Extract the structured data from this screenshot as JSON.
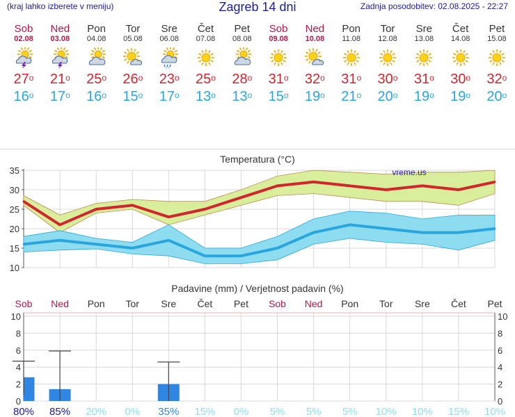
{
  "header": {
    "left_note": "(kraj lahko izberete v meniju)",
    "title": "Zagreb 14 dni",
    "updated": "Zadnja posodobitev: 02.08.2025 - 22:27"
  },
  "days": [
    {
      "name": "Sob",
      "date": "02.08",
      "weekend": true,
      "icon": "sun-cloud-thunder-icon",
      "max": 27,
      "min": 16,
      "rain_mm": 2.8,
      "rain_err": [
        0.7,
        4.7
      ],
      "prob": "80%"
    },
    {
      "name": "Ned",
      "date": "03.08",
      "weekend": true,
      "icon": "sun-cloud-thunder-icon",
      "max": 21,
      "min": 17,
      "rain_mm": 1.4,
      "rain_err": [
        0,
        5.9
      ],
      "prob": "85%"
    },
    {
      "name": "Pon",
      "date": "04.08",
      "weekend": false,
      "icon": "sun-cloud-icon",
      "max": 25,
      "min": 16,
      "rain_mm": 0,
      "prob": "20%"
    },
    {
      "name": "Tor",
      "date": "05.08",
      "weekend": false,
      "icon": "sun-small-cloud-icon",
      "max": 26,
      "min": 15,
      "rain_mm": 0,
      "prob": "0%"
    },
    {
      "name": "Sre",
      "date": "06.08",
      "weekend": false,
      "icon": "sun-cloud-rain-icon",
      "max": 23,
      "min": 17,
      "rain_mm": 2.0,
      "rain_err": [
        0,
        4.6
      ],
      "prob": "35%"
    },
    {
      "name": "Čet",
      "date": "07.08",
      "weekend": false,
      "icon": "sun-icon",
      "max": 25,
      "min": 13,
      "rain_mm": 0,
      "prob": "15%"
    },
    {
      "name": "Pet",
      "date": "08.08",
      "weekend": false,
      "icon": "sun-cloud-icon",
      "max": 28,
      "min": 13,
      "rain_mm": 0,
      "prob": "0%"
    },
    {
      "name": "Sob",
      "date": "09.08",
      "weekend": true,
      "icon": "sun-icon",
      "max": 31,
      "min": 15,
      "rain_mm": 0,
      "prob": "5%"
    },
    {
      "name": "Ned",
      "date": "10.08",
      "weekend": true,
      "icon": "sun-small-cloud-icon",
      "max": 32,
      "min": 19,
      "rain_mm": 0,
      "prob": "5%"
    },
    {
      "name": "Pon",
      "date": "11.08",
      "weekend": false,
      "icon": "sun-icon",
      "max": 31,
      "min": 21,
      "rain_mm": 0,
      "prob": "5%"
    },
    {
      "name": "Tor",
      "date": "12.08",
      "weekend": false,
      "icon": "sun-icon",
      "max": 30,
      "min": 20,
      "rain_mm": 0,
      "prob": "10%"
    },
    {
      "name": "Sre",
      "date": "13.08",
      "weekend": false,
      "icon": "sun-icon",
      "max": 31,
      "min": 19,
      "rain_mm": 0,
      "prob": "10%"
    },
    {
      "name": "Čet",
      "date": "14.08",
      "weekend": false,
      "icon": "sun-icon",
      "max": 30,
      "min": 19,
      "rain_mm": 0,
      "prob": "15%"
    },
    {
      "name": "Pet",
      "date": "15.08",
      "weekend": false,
      "icon": "sun-icon",
      "max": 32,
      "min": 20,
      "rain_mm": 0,
      "prob": "10%"
    }
  ],
  "colors": {
    "max": "#d0262e",
    "min": "#2aa6de",
    "max_band": "#d9ee9a",
    "min_band": "#8ddcef",
    "bar": "#2f86e3",
    "weekend": "#b0174e",
    "grid": "#d8d8d8",
    "prob_high": "#1a1aa6",
    "prob_low": "#8ddcef"
  },
  "chart_data": [
    {
      "type": "line",
      "title": "Temperatura (°C)",
      "watermark": "vreme.us",
      "categories": [
        "02.08",
        "03.08",
        "04.08",
        "05.08",
        "06.08",
        "07.08",
        "08.08",
        "09.08",
        "10.08",
        "11.08",
        "12.08",
        "13.08",
        "14.08",
        "15.08"
      ],
      "ylim": [
        10,
        35
      ],
      "yticks": [
        10,
        15,
        20,
        25,
        30,
        35
      ],
      "grid": true,
      "series": [
        {
          "name": "max",
          "values": [
            27,
            21,
            25,
            26,
            23,
            25,
            28,
            31,
            32,
            31,
            30,
            31,
            30,
            32
          ],
          "band_low": [
            26,
            19,
            24,
            25,
            21,
            23.5,
            26,
            28.5,
            29,
            28,
            27,
            27,
            26,
            29
          ],
          "band_high": [
            28.5,
            23.5,
            26.5,
            27.5,
            27,
            27,
            30,
            33.5,
            35,
            34.5,
            34,
            34.5,
            34.5,
            35
          ]
        },
        {
          "name": "min",
          "values": [
            16,
            17,
            16,
            15,
            17,
            13,
            13,
            15,
            19,
            21,
            20,
            19,
            19,
            20
          ],
          "band_low": [
            14,
            14.5,
            14.8,
            13.5,
            13,
            11,
            11,
            12,
            16,
            17.5,
            16.5,
            16,
            14.5,
            17
          ],
          "band_high": [
            18,
            19.5,
            17.5,
            16.5,
            21,
            15,
            15,
            18,
            22.5,
            24.5,
            24,
            22.5,
            23.5,
            23.5
          ]
        }
      ]
    },
    {
      "type": "bar",
      "title": "Padavine (mm) / Verjetnost padavin (%)",
      "categories": [
        "Sob",
        "Ned",
        "Pon",
        "Tor",
        "Sre",
        "Čet",
        "Pet",
        "Sob",
        "Ned",
        "Pon",
        "Tor",
        "Sre",
        "Čet",
        "Pet"
      ],
      "values": [
        2.8,
        1.4,
        0,
        0,
        2.0,
        0,
        0,
        0,
        0,
        0,
        0,
        0,
        0,
        0
      ],
      "probabilities": [
        "80%",
        "85%",
        "20%",
        "0%",
        "35%",
        "15%",
        "0%",
        "5%",
        "5%",
        "5%",
        "10%",
        "10%",
        "15%",
        "10%"
      ],
      "ylim": [
        0,
        10
      ],
      "yticks": [
        0,
        2,
        4,
        6,
        8,
        10
      ],
      "grid": true
    }
  ]
}
